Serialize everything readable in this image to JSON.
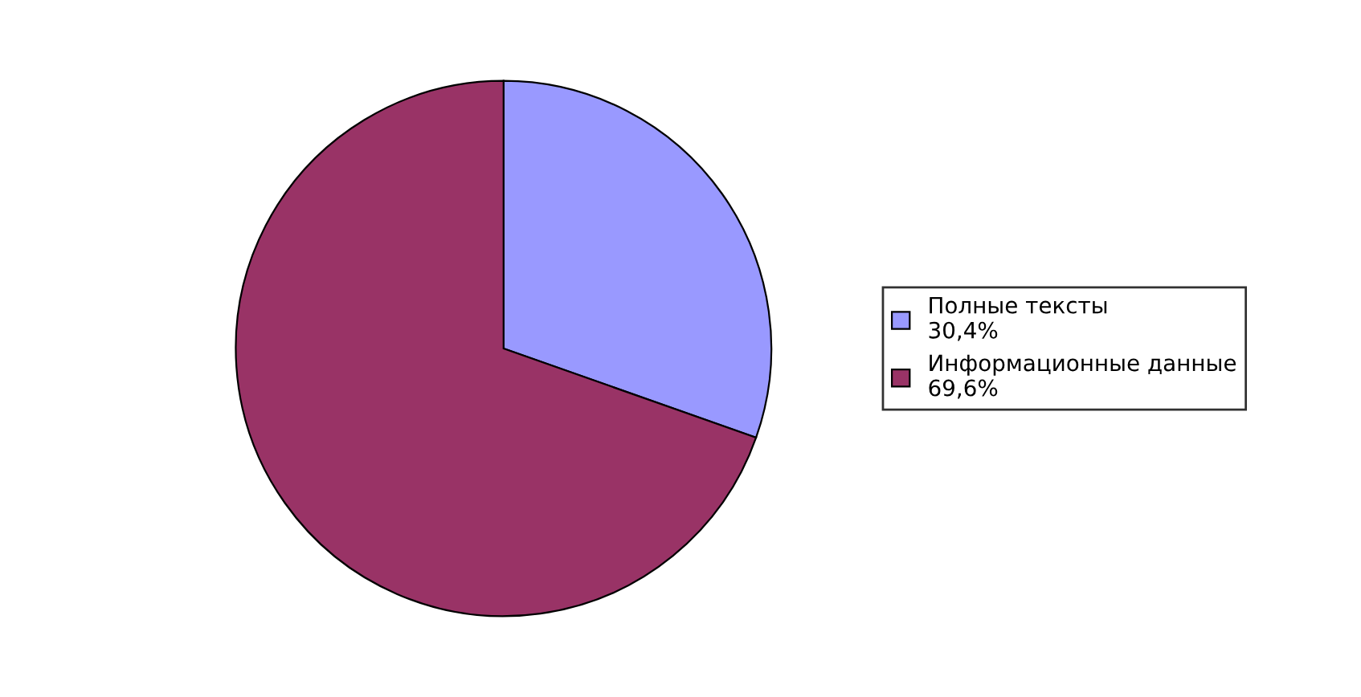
{
  "chart_data": {
    "type": "pie",
    "categories": [
      "Полные тексты",
      "Информационные данные"
    ],
    "values": [
      30.4,
      69.6
    ],
    "value_labels": [
      "30,4%",
      "69,6%"
    ],
    "colors": [
      "#9999ff",
      "#993366"
    ],
    "legend": "right"
  }
}
